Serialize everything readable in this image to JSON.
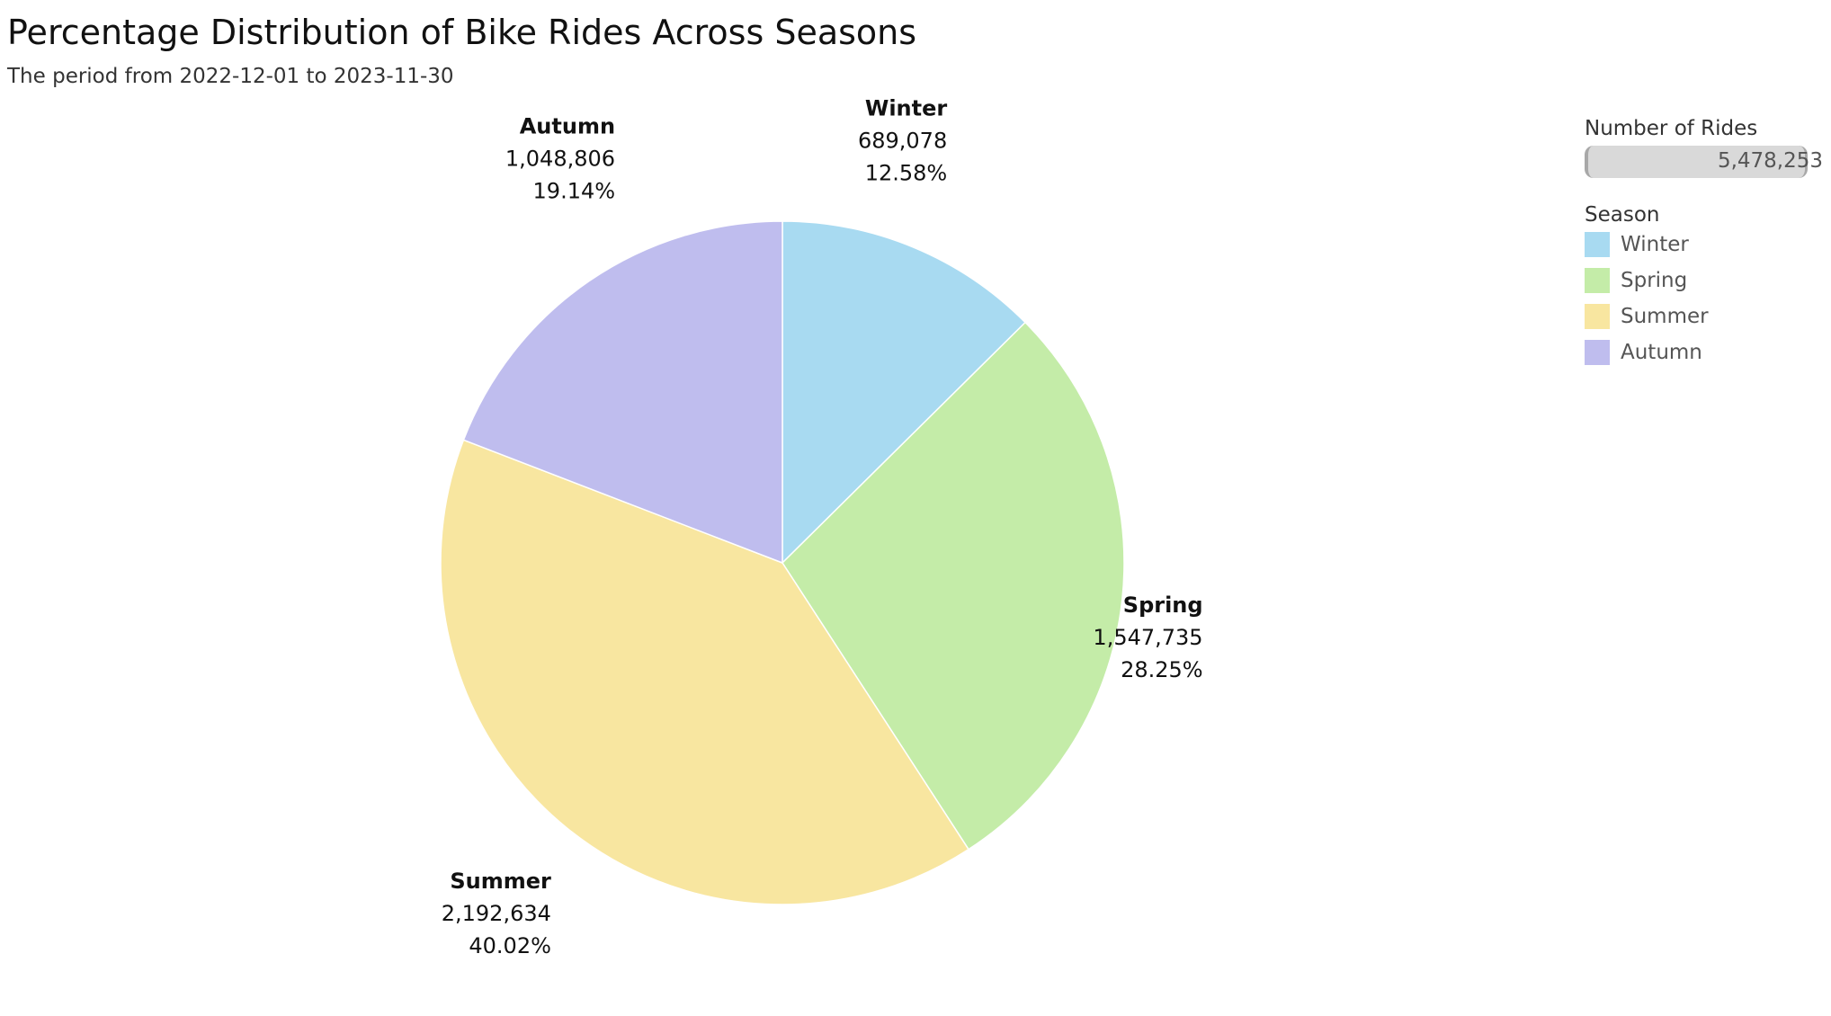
{
  "header": {
    "title": "Percentage Distribution of Bike Rides Across Seasons",
    "subtitle": "The period from 2022-12-01 to 2023-11-30"
  },
  "legend": {
    "size_title": "Number of Rides",
    "size_value": "5,478,253",
    "color_title": "Season",
    "items": [
      {
        "label": "Winter",
        "color": "#a8daf1"
      },
      {
        "label": "Spring",
        "color": "#c4eca8"
      },
      {
        "label": "Summer",
        "color": "#f8e6a0"
      },
      {
        "label": "Autumn",
        "color": "#bfbdee"
      }
    ]
  },
  "chart_data": {
    "type": "pie",
    "title": "Percentage Distribution of Bike Rides Across Seasons",
    "subtitle": "The period from 2022-12-01 to 2023-11-30",
    "total": 5478253,
    "slices": [
      {
        "name": "Winter",
        "value": 689078,
        "value_label": "689,078",
        "percent": 12.58,
        "percent_label": "12.58%",
        "color": "#a8daf1"
      },
      {
        "name": "Spring",
        "value": 1547735,
        "value_label": "1,547,735",
        "percent": 28.25,
        "percent_label": "28.25%",
        "color": "#c4eca8"
      },
      {
        "name": "Summer",
        "value": 2192634,
        "value_label": "2,192,634",
        "percent": 40.02,
        "percent_label": "40.02%",
        "color": "#f8e6a0"
      },
      {
        "name": "Autumn",
        "value": 1048806,
        "value_label": "1,048,806",
        "percent": 19.14,
        "percent_label": "19.14%",
        "color": "#bfbdee"
      }
    ],
    "start_angle": "12 o'clock",
    "direction": "clockwise",
    "legend_position": "right"
  }
}
